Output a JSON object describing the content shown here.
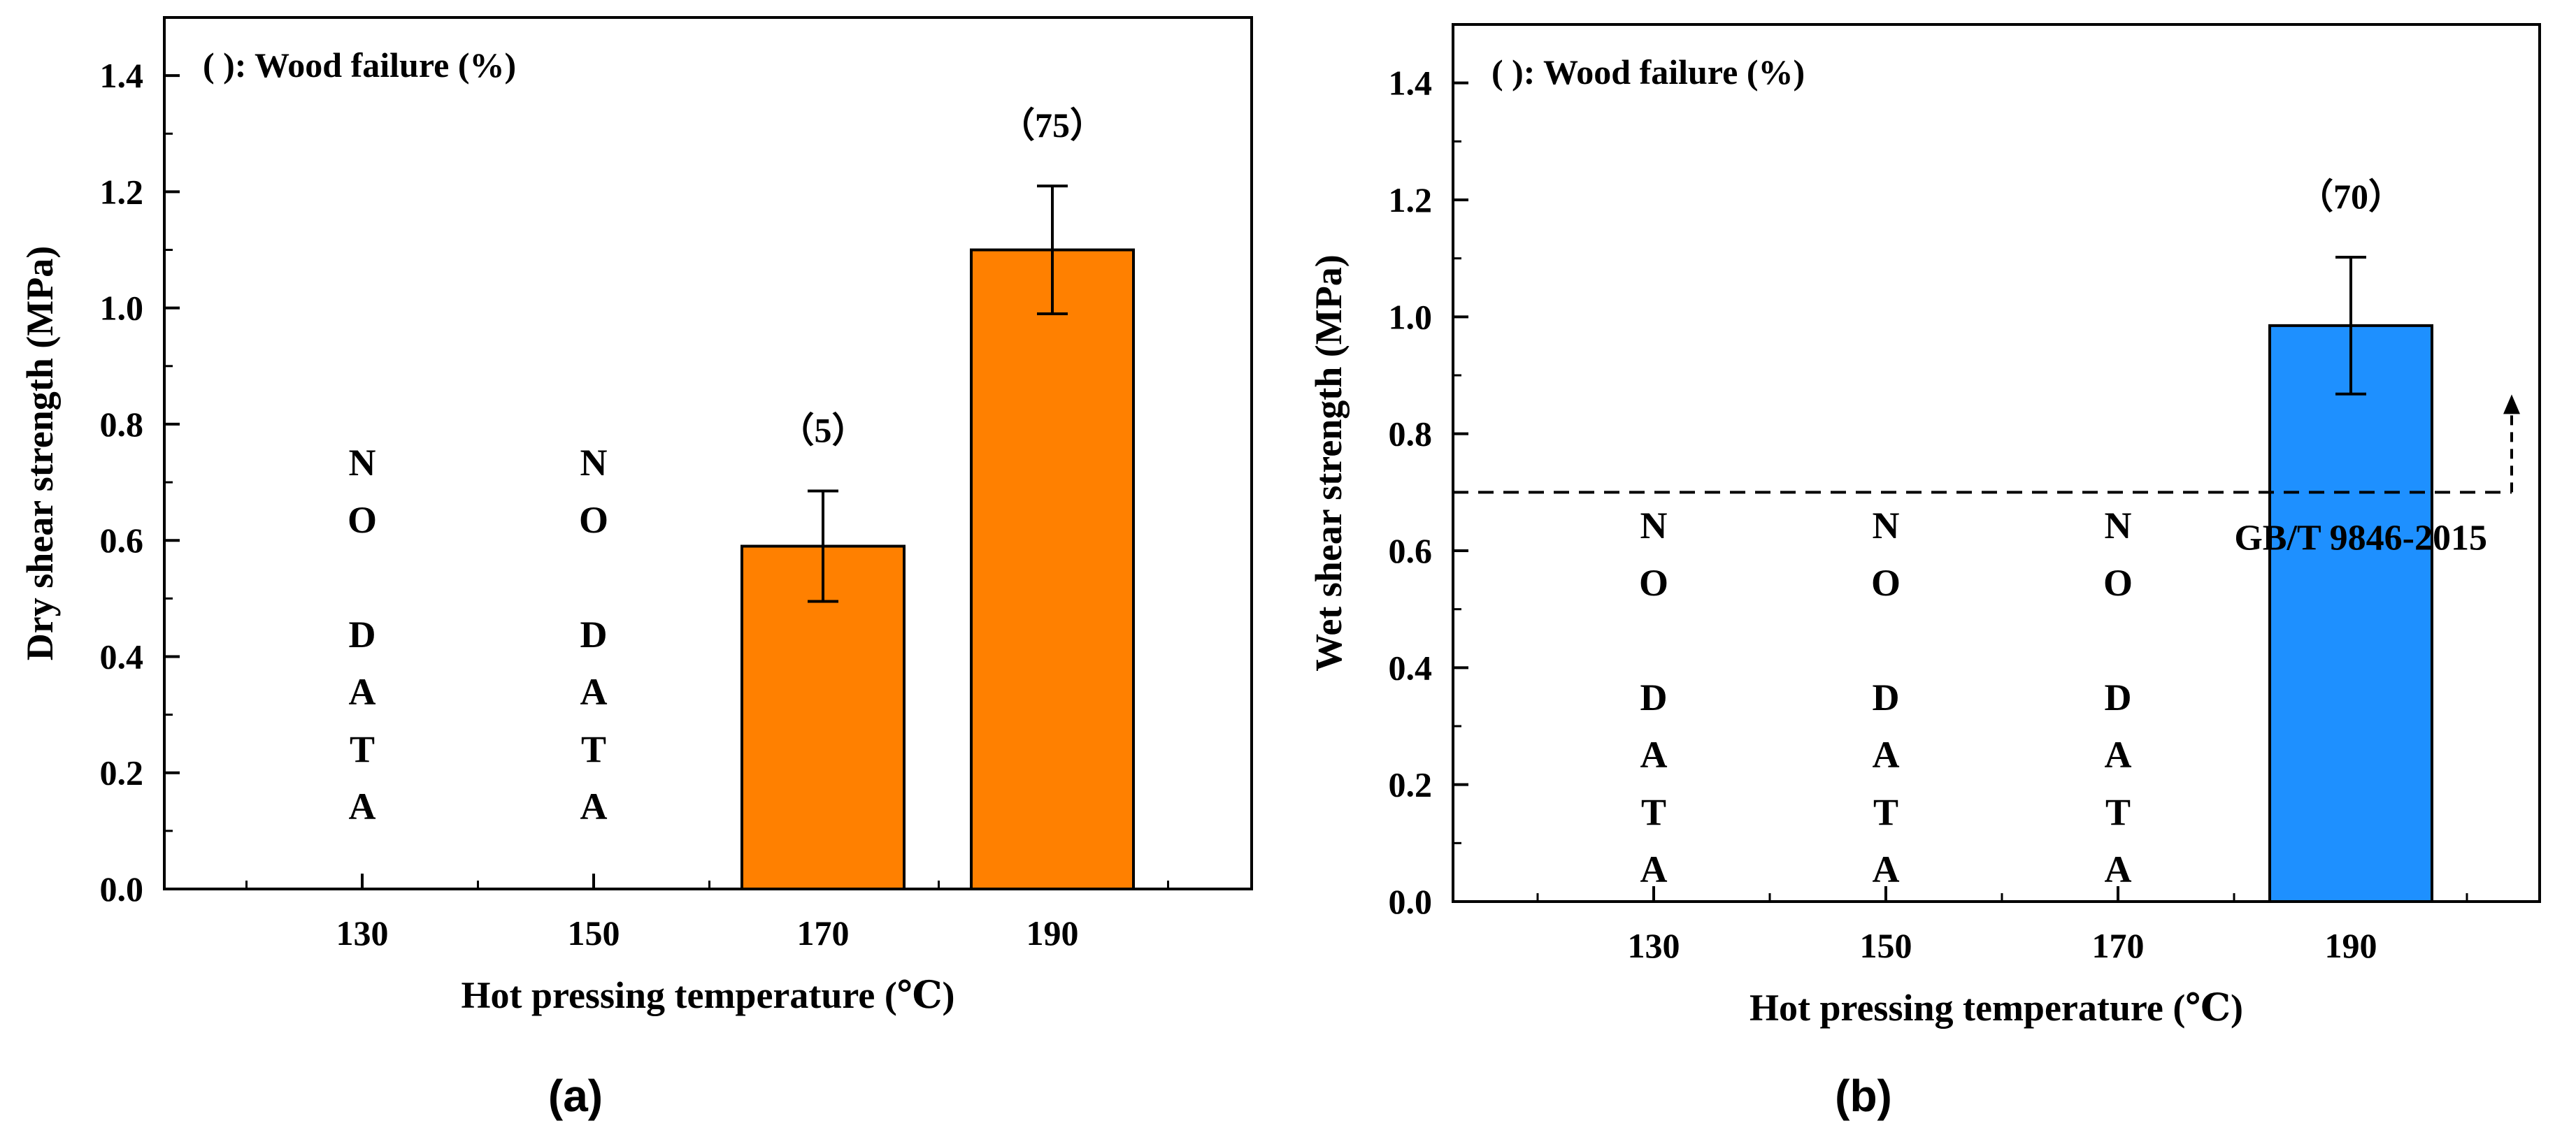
{
  "chart_data": [
    {
      "type": "bar",
      "panel_label": "(a)",
      "annotation": "( ): Wood failure (%)",
      "xlabel": "Hot pressing temperature (℃)",
      "ylabel": "Dry shear strength (MPa)",
      "ylim": [
        0,
        1.5
      ],
      "yticks": [
        "0.0",
        "0.2",
        "0.4",
        "0.6",
        "0.8",
        "1.0",
        "1.2",
        "1.4"
      ],
      "ytick_values": [
        0,
        0.2,
        0.4,
        0.6,
        0.8,
        1.0,
        1.2,
        1.4
      ],
      "categories": [
        "130",
        "150",
        "170",
        "190"
      ],
      "values": [
        null,
        null,
        0.59,
        1.1
      ],
      "errors": [
        null,
        null,
        0.095,
        0.11
      ],
      "bar_labels": [
        "",
        "",
        "（5）",
        "（75）"
      ],
      "no_data_label": [
        "N",
        "O",
        "",
        "D",
        "A",
        "T",
        "A"
      ],
      "bar_color": "#FF8000",
      "reference_line": null
    },
    {
      "type": "bar",
      "panel_label": "(b)",
      "annotation": "( ): Wood failure (%)",
      "xlabel": "Hot pressing temperature (℃)",
      "ylabel": "Wet shear strength (MPa)",
      "ylim": [
        0,
        1.5
      ],
      "yticks": [
        "0.0",
        "0.2",
        "0.4",
        "0.6",
        "0.8",
        "1.0",
        "1.2",
        "1.4"
      ],
      "ytick_values": [
        0,
        0.2,
        0.4,
        0.6,
        0.8,
        1.0,
        1.2,
        1.4
      ],
      "categories": [
        "130",
        "150",
        "170",
        "190"
      ],
      "values": [
        null,
        null,
        null,
        0.985
      ],
      "errors": [
        null,
        null,
        null,
        0.117
      ],
      "bar_labels": [
        "",
        "",
        "",
        "（70）"
      ],
      "no_data_label": [
        "N",
        "O",
        "",
        "D",
        "A",
        "T",
        "A"
      ],
      "bar_color": "#1E90FF",
      "reference_line": {
        "value": 0.7,
        "label": "GB/T 9846-2015"
      }
    }
  ]
}
